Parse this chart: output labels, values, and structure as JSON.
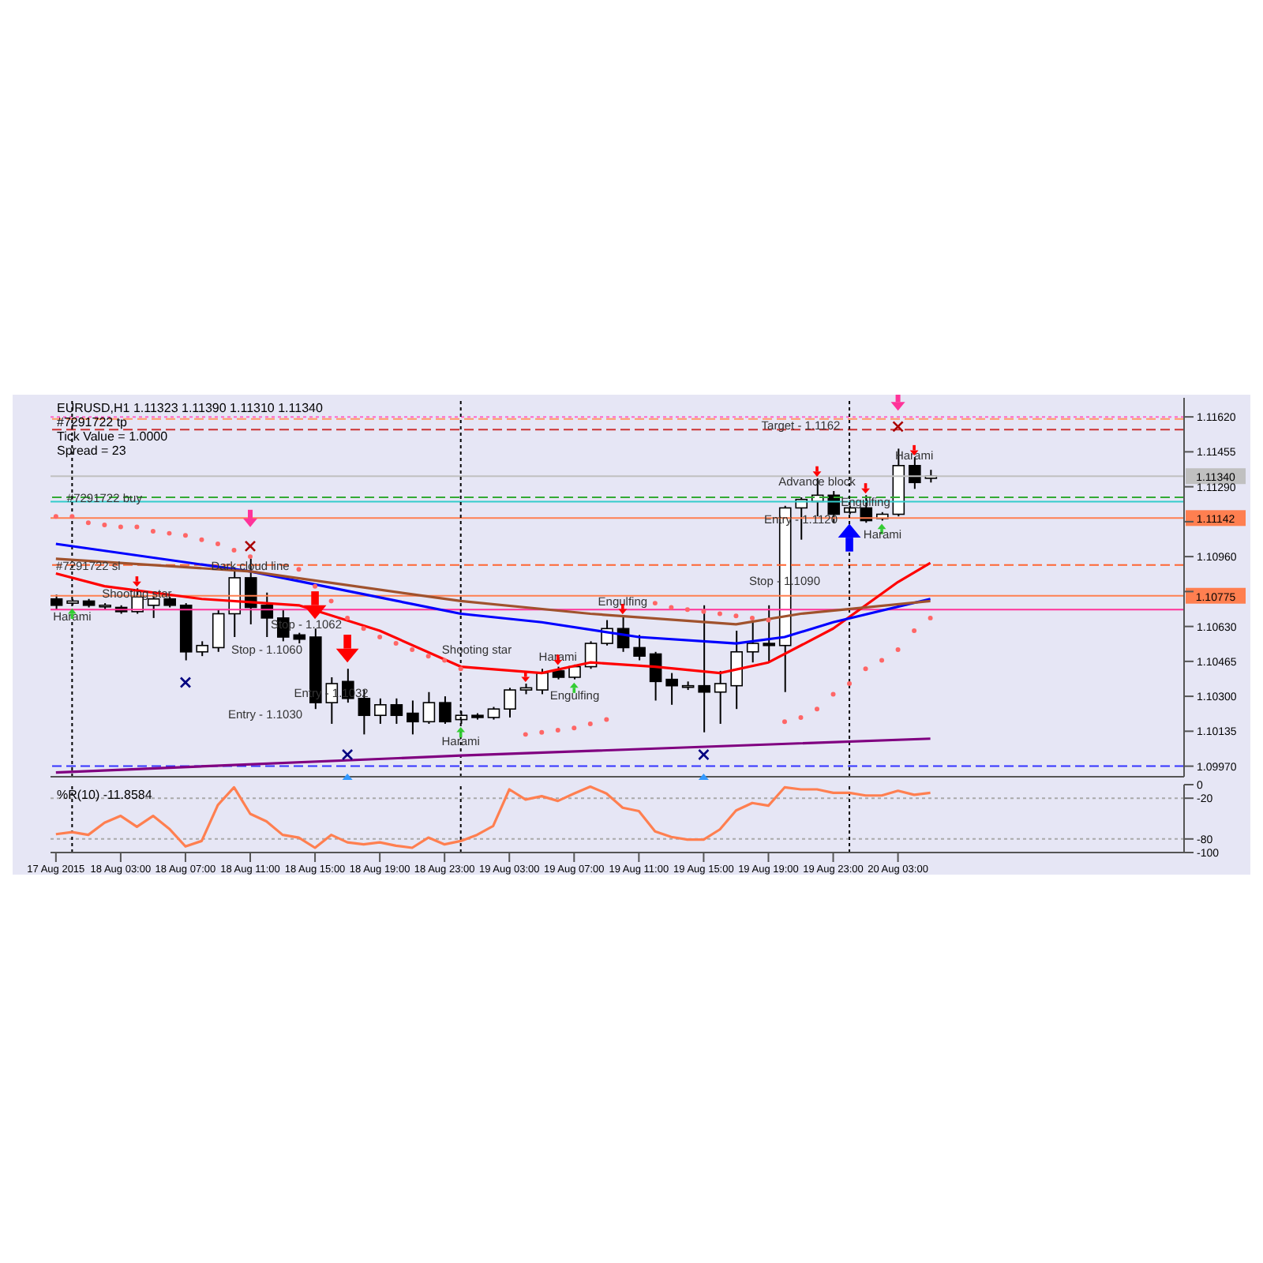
{
  "chart_data": [
    {
      "type": "candlestick",
      "title": "EURUSD,H1  1.11323 1.11390 1.11310 1.11340",
      "tick_labels": "y",
      "annotations": [
        "#7291722 tp",
        "Tick Value = 1.0000",
        "Spread = 23",
        "Stop - 1.1060",
        "Stop - 1.1062",
        "Entry - 1.1030",
        "Engulfing",
        "Harami",
        "Shooting star",
        {
          "text": "#7291722 buy",
          "x": "2015-08-18T02:00",
          "y": 1.1124
        },
        {
          "text": "#7291722 sl",
          "x": "2015-08-18T01:00",
          "y": 1.1092
        },
        {
          "text": "Harami",
          "x": "2015-08-18T00:00",
          "y": 1.1068
        },
        {
          "text": "Shooting star",
          "x": "2015-08-18T04:00",
          "y": 1.1079
        },
        {
          "text": "Dark cloud line",
          "x": "2015-08-18T11:00",
          "y": 1.1092
        },
        {
          "text": "Entry - 1.1032",
          "x": "2015-08-18T16:00",
          "y": 1.1032
        },
        {
          "text": "Harami",
          "x": "2015-08-19T00:00",
          "y": 1.1009
        },
        {
          "text": "Harami",
          "x": "2015-08-19T06:00",
          "y": 1.1049
        },
        {
          "text": "Engulfing",
          "x": "2015-08-19T10:00",
          "y": 1.1075
        },
        {
          "text": "Target - 1.1162",
          "x": "2015-08-19T21:00",
          "y": 1.11585
        },
        {
          "text": "Advance block",
          "x": "2015-08-19T22:00",
          "y": 1.1132
        },
        {
          "text": "Entry - 1.1120",
          "x": "2015-08-19T21:00",
          "y": 1.1114
        },
        {
          "text": "Stop - 1.1090",
          "x": "2015-08-19T20:00",
          "y": 1.1085
        },
        {
          "text": "Engulfing",
          "x": "2015-08-20T01:00",
          "y": 1.1122
        },
        {
          "text": "Harami",
          "x": "2015-08-20T04:00",
          "y": 1.1144
        }
      ],
      "x": [
        "2015-08-17T23:00",
        "2015-08-18T00:00",
        "2015-08-18T01:00",
        "2015-08-18T02:00",
        "2015-08-18T03:00",
        "2015-08-18T04:00",
        "2015-08-18T05:00",
        "2015-08-18T06:00",
        "2015-08-18T07:00",
        "2015-08-18T08:00",
        "2015-08-18T09:00",
        "2015-08-18T10:00",
        "2015-08-18T11:00",
        "2015-08-18T12:00",
        "2015-08-18T13:00",
        "2015-08-18T14:00",
        "2015-08-18T15:00",
        "2015-08-18T16:00",
        "2015-08-18T17:00",
        "2015-08-18T18:00",
        "2015-08-18T19:00",
        "2015-08-18T20:00",
        "2015-08-18T21:00",
        "2015-08-18T22:00",
        "2015-08-18T23:00",
        "2015-08-19T00:00",
        "2015-08-19T01:00",
        "2015-08-19T02:00",
        "2015-08-19T03:00",
        "2015-08-19T04:00",
        "2015-08-19T05:00",
        "2015-08-19T06:00",
        "2015-08-19T07:00",
        "2015-08-19T08:00",
        "2015-08-19T09:00",
        "2015-08-19T10:00",
        "2015-08-19T11:00",
        "2015-08-19T12:00",
        "2015-08-19T13:00",
        "2015-08-19T14:00",
        "2015-08-19T15:00",
        "2015-08-19T16:00",
        "2015-08-19T17:00",
        "2015-08-19T18:00",
        "2015-08-19T19:00",
        "2015-08-19T20:00",
        "2015-08-19T21:00",
        "2015-08-19T22:00",
        "2015-08-19T23:00",
        "2015-08-20T00:00",
        "2015-08-20T01:00",
        "2015-08-20T02:00",
        "2015-08-20T03:00",
        "2015-08-20T04:00",
        "2015-08-20T05:00"
      ],
      "ohlc": [
        [
          1.1076,
          1.1078,
          1.1071,
          1.1073
        ],
        [
          1.1074,
          1.1076,
          1.1073,
          1.1075
        ],
        [
          1.1075,
          1.1076,
          1.1072,
          1.1073
        ],
        [
          1.1073,
          1.1074,
          1.1071,
          1.1073
        ],
        [
          1.1072,
          1.1073,
          1.1069,
          1.107
        ],
        [
          1.107,
          1.1081,
          1.1069,
          1.1077
        ],
        [
          1.1073,
          1.1078,
          1.1067,
          1.1076
        ],
        [
          1.1076,
          1.1077,
          1.1072,
          1.1073
        ],
        [
          1.1073,
          1.1074,
          1.1047,
          1.1051
        ],
        [
          1.1051,
          1.1056,
          1.1049,
          1.1054
        ],
        [
          1.1053,
          1.1071,
          1.1051,
          1.1069
        ],
        [
          1.1069,
          1.1091,
          1.1058,
          1.1086
        ],
        [
          1.1086,
          1.1095,
          1.1064,
          1.1072
        ],
        [
          1.1073,
          1.1079,
          1.1058,
          1.1067
        ],
        [
          1.1067,
          1.1071,
          1.1056,
          1.1058
        ],
        [
          1.1059,
          1.106,
          1.1055,
          1.1057
        ],
        [
          1.1058,
          1.1062,
          1.1024,
          1.1027
        ],
        [
          1.1027,
          1.1039,
          1.1017,
          1.1036
        ],
        [
          1.1037,
          1.1043,
          1.1027,
          1.1029
        ],
        [
          1.1029,
          1.1033,
          1.1012,
          1.1021
        ],
        [
          1.1021,
          1.1029,
          1.1017,
          1.1026
        ],
        [
          1.1026,
          1.1029,
          1.1017,
          1.1021
        ],
        [
          1.1022,
          1.1028,
          1.1012,
          1.1018
        ],
        [
          1.1018,
          1.1032,
          1.1017,
          1.1027
        ],
        [
          1.1027,
          1.103,
          1.1017,
          1.1018
        ],
        [
          1.1019,
          1.1023,
          1.1017,
          1.1021
        ],
        [
          1.1021,
          1.1022,
          1.1019,
          1.102
        ],
        [
          1.102,
          1.1025,
          1.1019,
          1.1024
        ],
        [
          1.1024,
          1.1034,
          1.102,
          1.1033
        ],
        [
          1.1033,
          1.1036,
          1.1031,
          1.1034
        ],
        [
          1.1033,
          1.1043,
          1.1031,
          1.1041
        ],
        [
          1.1042,
          1.1044,
          1.1038,
          1.1039
        ],
        [
          1.1039,
          1.1045,
          1.1038,
          1.1044
        ],
        [
          1.1044,
          1.1056,
          1.1043,
          1.1055
        ],
        [
          1.1055,
          1.1066,
          1.1054,
          1.1062
        ],
        [
          1.1062,
          1.1068,
          1.1051,
          1.1053
        ],
        [
          1.1053,
          1.1059,
          1.1047,
          1.1049
        ],
        [
          1.105,
          1.1051,
          1.1028,
          1.1037
        ],
        [
          1.1038,
          1.1041,
          1.1026,
          1.1035
        ],
        [
          1.1035,
          1.1037,
          1.1033,
          1.1035
        ],
        [
          1.1035,
          1.1073,
          1.1013,
          1.1032
        ],
        [
          1.1032,
          1.1042,
          1.1017,
          1.1036
        ],
        [
          1.1035,
          1.1061,
          1.1024,
          1.1051
        ],
        [
          1.1051,
          1.1066,
          1.1046,
          1.1055
        ],
        [
          1.1055,
          1.1073,
          1.1046,
          1.1054
        ],
        [
          1.1054,
          1.112,
          1.1032,
          1.1119
        ],
        [
          1.1119,
          1.1124,
          1.1104,
          1.1123
        ],
        [
          1.1122,
          1.1133,
          1.1115,
          1.1125
        ],
        [
          1.1125,
          1.1127,
          1.1112,
          1.1116
        ],
        [
          1.1117,
          1.112,
          1.1116,
          1.1119
        ],
        [
          1.1119,
          1.1125,
          1.1112,
          1.1113
        ],
        [
          1.1114,
          1.1117,
          1.1113,
          1.1116
        ],
        [
          1.1116,
          1.1147,
          1.1115,
          1.1139
        ],
        [
          1.1139,
          1.1143,
          1.1128,
          1.1131
        ],
        [
          1.1133,
          1.1137,
          1.1131,
          1.1134
        ]
      ],
      "series": [
        {
          "type": "line",
          "color": "#ff0000",
          "x": [
            "2015-08-17T23:00",
            "2015-08-18T02:00",
            "2015-08-18T08:00",
            "2015-08-18T14:00",
            "2015-08-18T19:00",
            "2015-08-19T00:00",
            "2015-08-19T05:00",
            "2015-08-19T08:00",
            "2015-08-19T12:00",
            "2015-08-19T16:00",
            "2015-08-19T19:00",
            "2015-08-19T23:00",
            "2015-08-20T03:00",
            "2015-08-20T05:00"
          ],
          "values": [
            1.1088,
            1.1082,
            1.1076,
            1.1073,
            1.1061,
            1.1044,
            1.1041,
            1.1046,
            1.1044,
            1.1041,
            1.1046,
            1.1062,
            1.1084,
            1.1093
          ]
        },
        {
          "type": "line",
          "color": "#0000ff",
          "x": [
            "2015-08-17T23:00",
            "2015-08-18T11:00",
            "2015-08-19T00:00",
            "2015-08-19T05:00",
            "2015-08-19T11:00",
            "2015-08-19T17:00",
            "2015-08-19T20:00",
            "2015-08-19T23:00",
            "2015-08-20T05:00"
          ],
          "values": [
            1.1102,
            1.1089,
            1.1069,
            1.1065,
            1.1058,
            1.1055,
            1.1058,
            1.1065,
            1.1076
          ]
        },
        {
          "type": "line",
          "color": "#a0522d",
          "x": [
            "2015-08-17T23:00",
            "2015-08-18T11:00",
            "2015-08-19T00:00",
            "2015-08-19T08:00",
            "2015-08-19T17:00",
            "2015-08-19T21:00",
            "2015-08-20T05:00"
          ],
          "values": [
            1.1095,
            1.1089,
            1.1075,
            1.1069,
            1.1064,
            1.1069,
            1.1075
          ]
        },
        {
          "type": "line",
          "color": "#800080",
          "x": [
            "2015-08-17T23:00",
            "2015-08-19T00:00",
            "2015-08-20T05:00"
          ],
          "values": [
            1.0994,
            1.1002,
            1.101
          ]
        },
        {
          "type": "scatter",
          "color": "#ff6666",
          "marker": "circle",
          "values": [
            1.1115,
            1.1115,
            1.1112,
            1.1111,
            1.111,
            1.111,
            1.1108,
            1.1107,
            1.1106,
            1.1104,
            1.1102,
            1.1099,
            1.1096,
            null,
            null,
            1.109,
            1.1082,
            1.1075,
            1.1067,
            1.1062,
            1.1058,
            1.1055,
            1.1052,
            1.1049,
            1.1047,
            1.1043,
            null,
            null,
            null,
            1.1012,
            1.1013,
            1.1014,
            1.1015,
            1.1017,
            1.1019,
            null,
            null,
            1.1074,
            1.1072,
            1.1071,
            1.107,
            1.1069,
            1.1068,
            1.1067,
            1.1066,
            1.1018,
            1.102,
            1.1024,
            1.1031,
            1.1036,
            1.1043,
            1.1047,
            1.1052,
            1.1061,
            1.1067
          ]
        }
      ],
      "xlim": [
        "2015-08-17T22:40",
        "2015-08-20T20:40"
      ],
      "ylim": [
        1.0992,
        1.1171
      ],
      "yticks": [
        {
          "value": 1.1162,
          "label": "1.11620"
        },
        {
          "value": 1.11455,
          "label": "1.11455"
        },
        {
          "value": 1.1129,
          "label": "1.11290"
        },
        {
          "value": 1.11125,
          "label": null
        },
        {
          "value": 1.1096,
          "label": "1.10960"
        },
        {
          "value": 1.10795,
          "label": null
        },
        {
          "value": 1.1063,
          "label": "1.10630"
        },
        {
          "value": 1.10465,
          "label": "1.10465"
        },
        {
          "value": 1.103,
          "label": "1.10300"
        },
        {
          "value": 1.10135,
          "label": "1.10135"
        },
        {
          "value": 1.0997,
          "label": "1.09970"
        }
      ],
      "ref_lines": [
        {
          "axis": "y",
          "value": 1.1162,
          "color": "#ff66cc",
          "line_style": "dotted"
        },
        {
          "axis": "y",
          "value": 1.1161,
          "color": "#ff9966",
          "line_style": "dashed"
        },
        {
          "axis": "y",
          "value": 1.1156,
          "color": "#cc3333",
          "line_style": "dashed"
        },
        {
          "axis": "y",
          "value": 1.1134,
          "label": "1.11340",
          "color": "#c0c0c0",
          "line_style": "solid"
        },
        {
          "axis": "y",
          "value": 1.1124,
          "color": "#33aa33",
          "line_style": "dashed"
        },
        {
          "axis": "y",
          "value": 1.1122,
          "color": "#33cccc",
          "line_style": "solid"
        },
        {
          "axis": "y",
          "value": 1.11142,
          "label": "1.11142",
          "color": "#ff7f50",
          "line_style": "solid"
        },
        {
          "axis": "y",
          "value": 1.1092,
          "color": "#ff6633",
          "line_style": "dashed"
        },
        {
          "axis": "y",
          "value": 1.10775,
          "label": "1.10775",
          "color": "#ff7f50",
          "line_style": "solid"
        },
        {
          "axis": "y",
          "value": 1.1071,
          "color": "#ff3399",
          "line_style": "solid"
        },
        {
          "axis": "y",
          "value": 1.0997,
          "color": "#3333ff",
          "line_style": "dashed"
        },
        {
          "axis": "x",
          "value": "2015-08-18T00:00",
          "color": "#000000",
          "line_style": "dotted"
        },
        {
          "axis": "x",
          "value": "2015-08-19T00:00",
          "color": "#000000",
          "line_style": "dotted"
        },
        {
          "axis": "x",
          "value": "2015-08-20T00:00",
          "color": "#000000",
          "line_style": "dotted"
        }
      ]
    },
    {
      "type": "line",
      "title": "%R(10) -11.8584",
      "x": [
        "2015-08-17T23:00",
        "2015-08-18T00:00",
        "2015-08-18T01:00",
        "2015-08-18T02:00",
        "2015-08-18T03:00",
        "2015-08-18T04:00",
        "2015-08-18T05:00",
        "2015-08-18T06:00",
        "2015-08-18T07:00",
        "2015-08-18T08:00",
        "2015-08-18T09:00",
        "2015-08-18T10:00",
        "2015-08-18T11:00",
        "2015-08-18T12:00",
        "2015-08-18T13:00",
        "2015-08-18T14:00",
        "2015-08-18T15:00",
        "2015-08-18T16:00",
        "2015-08-18T17:00",
        "2015-08-18T18:00",
        "2015-08-18T19:00",
        "2015-08-18T20:00",
        "2015-08-18T21:00",
        "2015-08-18T22:00",
        "2015-08-18T23:00",
        "2015-08-19T00:00",
        "2015-08-19T01:00",
        "2015-08-19T02:00",
        "2015-08-19T03:00",
        "2015-08-19T04:00",
        "2015-08-19T05:00",
        "2015-08-19T06:00",
        "2015-08-19T07:00",
        "2015-08-19T08:00",
        "2015-08-19T09:00",
        "2015-08-19T10:00",
        "2015-08-19T11:00",
        "2015-08-19T12:00",
        "2015-08-19T13:00",
        "2015-08-19T14:00",
        "2015-08-19T15:00",
        "2015-08-19T16:00",
        "2015-08-19T17:00",
        "2015-08-19T18:00",
        "2015-08-19T19:00",
        "2015-08-19T20:00",
        "2015-08-19T21:00",
        "2015-08-19T22:00",
        "2015-08-19T23:00",
        "2015-08-20T00:00",
        "2015-08-20T01:00",
        "2015-08-20T02:00",
        "2015-08-20T03:00",
        "2015-08-20T04:00",
        "2015-08-20T05:00"
      ],
      "series": [
        {
          "color": "#ff7f50",
          "values": [
            -73,
            -70,
            -74,
            -56,
            -46,
            -62,
            -46,
            -65,
            -91,
            -83,
            -30,
            -4,
            -43,
            -54,
            -74,
            -78,
            -93,
            -74,
            -85,
            -88,
            -85,
            -90,
            -93,
            -78,
            -88,
            -83,
            -74,
            -61,
            -7,
            -22,
            -17,
            -24,
            -13,
            -3,
            -13,
            -34,
            -39,
            -69,
            -77,
            -81,
            -81,
            -66,
            -38,
            -27,
            -31,
            -4,
            -7,
            -7,
            -12,
            -12,
            -16,
            -16,
            -9,
            -15,
            -12
          ]
        }
      ],
      "xlim": [
        "2015-08-17T22:40",
        "2015-08-20T20:40"
      ],
      "xticks": [
        {
          "value": "2015-08-17T23:00",
          "label": "17 Aug 2015"
        },
        {
          "value": "2015-08-18T03:00",
          "label": "18 Aug 03:00"
        },
        {
          "value": "2015-08-18T07:00",
          "label": "18 Aug 07:00"
        },
        {
          "value": "2015-08-18T11:00",
          "label": "18 Aug 11:00"
        },
        {
          "value": "2015-08-18T15:00",
          "label": "18 Aug 15:00"
        },
        {
          "value": "2015-08-18T19:00",
          "label": "18 Aug 19:00"
        },
        {
          "value": "2015-08-18T23:00",
          "label": "18 Aug 23:00"
        },
        {
          "value": "2015-08-19T03:00",
          "label": "19 Aug 03:00"
        },
        {
          "value": "2015-08-19T07:00",
          "label": "19 Aug 07:00"
        },
        {
          "value": "2015-08-19T11:00",
          "label": "19 Aug 11:00"
        },
        {
          "value": "2015-08-19T15:00",
          "label": "19 Aug 15:00"
        },
        {
          "value": "2015-08-19T19:00",
          "label": "19 Aug 19:00"
        },
        {
          "value": "2015-08-19T23:00",
          "label": "19 Aug 23:00"
        },
        {
          "value": "2015-08-20T03:00",
          "label": "20 Aug 03:00"
        }
      ],
      "ylim": [
        -100,
        0
      ],
      "yticks": [
        0,
        -20,
        -80,
        -100
      ],
      "ref_lines": [
        {
          "axis": "y",
          "value": -20,
          "color": "#aaaaaa",
          "line_style": "dotted"
        },
        {
          "axis": "y",
          "value": -80,
          "color": "#aaaaaa",
          "line_style": "dotted"
        },
        {
          "axis": "x",
          "value": "2015-08-18T00:00",
          "color": "#000000",
          "line_style": "dotted"
        },
        {
          "axis": "x",
          "value": "2015-08-19T00:00",
          "color": "#000000",
          "line_style": "dotted"
        },
        {
          "axis": "x",
          "value": "2015-08-20T00:00",
          "color": "#000000",
          "line_style": "dotted"
        }
      ]
    }
  ]
}
